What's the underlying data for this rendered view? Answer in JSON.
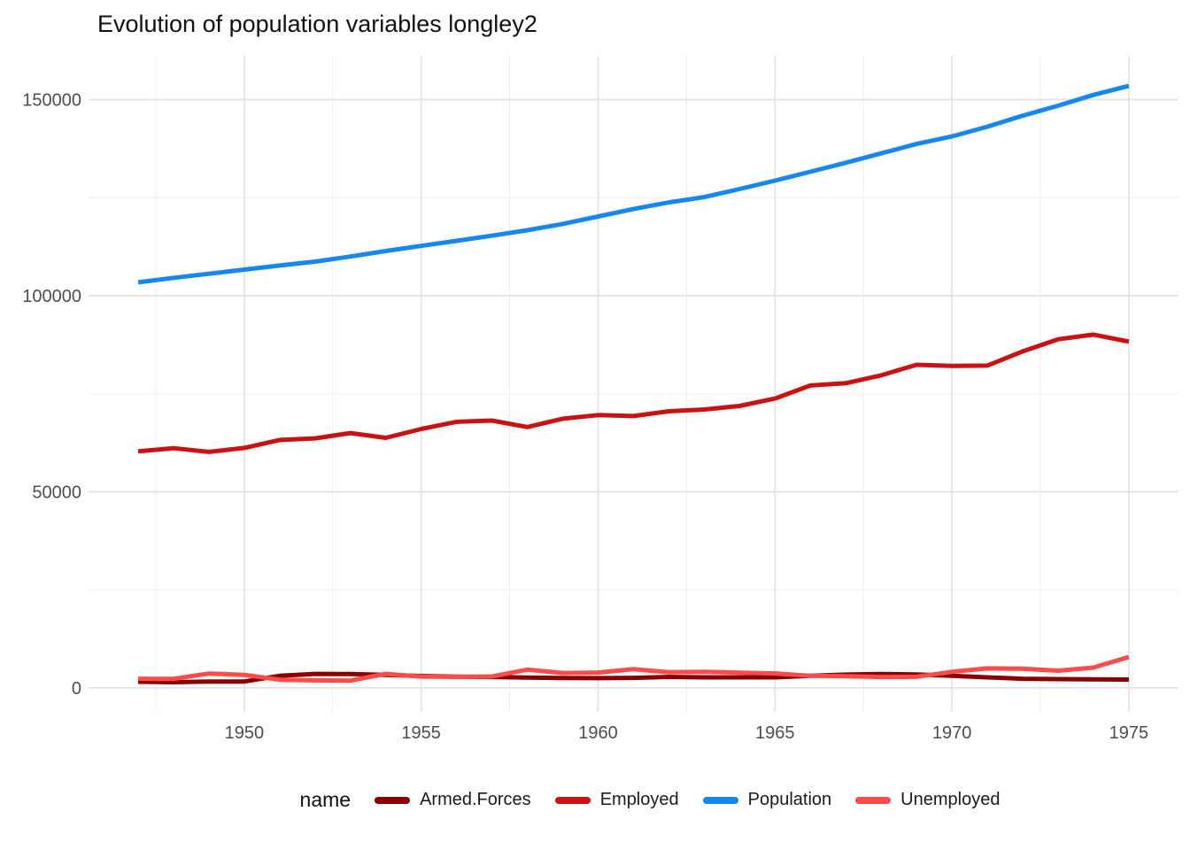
{
  "title": "Evolution of population variables longley2",
  "legend": {
    "title": "name",
    "items": [
      {
        "label": "Armed.Forces",
        "color": "#8B0000"
      },
      {
        "label": "Employed",
        "color": "#CA1212"
      },
      {
        "label": "Population",
        "color": "#1787F0"
      },
      {
        "label": "Unemployed",
        "color": "#FB4B4B"
      }
    ]
  },
  "chart_data": {
    "type": "line",
    "title": "Evolution of population variables longley2",
    "xlabel": "",
    "ylabel": "",
    "legend_title": "name",
    "legend_position": "bottom",
    "grid": true,
    "xlim": [
      1945.6,
      1976.4
    ],
    "ylim": [
      -6100,
      161100
    ],
    "x_ticks": [
      1950,
      1955,
      1960,
      1965,
      1970,
      1975
    ],
    "y_ticks": [
      0,
      50000,
      100000,
      150000
    ],
    "x": [
      1947,
      1948,
      1949,
      1950,
      1951,
      1952,
      1953,
      1954,
      1955,
      1956,
      1957,
      1958,
      1959,
      1960,
      1961,
      1962,
      1963,
      1964,
      1965,
      1966,
      1967,
      1968,
      1969,
      1970,
      1971,
      1972,
      1973,
      1974,
      1975
    ],
    "series": [
      {
        "name": "Armed.Forces",
        "color": "#8B0000",
        "values": [
          1590,
          1456,
          1616,
          1650,
          3099,
          3594,
          3547,
          3350,
          3048,
          2857,
          2798,
          2637,
          2552,
          2514,
          2572,
          2827,
          2700,
          2700,
          2700,
          3100,
          3400,
          3550,
          3450,
          3100,
          2700,
          2350,
          2250,
          2200,
          2150
        ]
      },
      {
        "name": "Employed",
        "color": "#CA1212",
        "values": [
          60323,
          61122,
          60171,
          61187,
          63221,
          63639,
          64989,
          63761,
          66019,
          67857,
          68169,
          66513,
          68655,
          69564,
          69331,
          70551,
          71000,
          71900,
          73800,
          77100,
          77700,
          79700,
          82400,
          82100,
          82200,
          85800,
          88900,
          90100,
          88300
        ]
      },
      {
        "name": "Population",
        "color": "#1787F0",
        "values": [
          103400,
          104550,
          105600,
          106650,
          107700,
          108700,
          110000,
          111400,
          112700,
          114000,
          115300,
          116700,
          118300,
          120200,
          122100,
          123800,
          125150,
          127200,
          129350,
          131600,
          133900,
          136300,
          138700,
          140600,
          143100,
          145900,
          148450,
          151200,
          153500
        ]
      },
      {
        "name": "Unemployed",
        "color": "#FB4B4B",
        "values": [
          2356,
          2325,
          3682,
          3351,
          2099,
          1932,
          1870,
          3578,
          2904,
          2822,
          2936,
          4681,
          3813,
          3931,
          4806,
          4007,
          4100,
          3900,
          3700,
          3100,
          3000,
          2800,
          2850,
          4100,
          5000,
          4900,
          4400,
          5200,
          7900
        ]
      }
    ]
  }
}
